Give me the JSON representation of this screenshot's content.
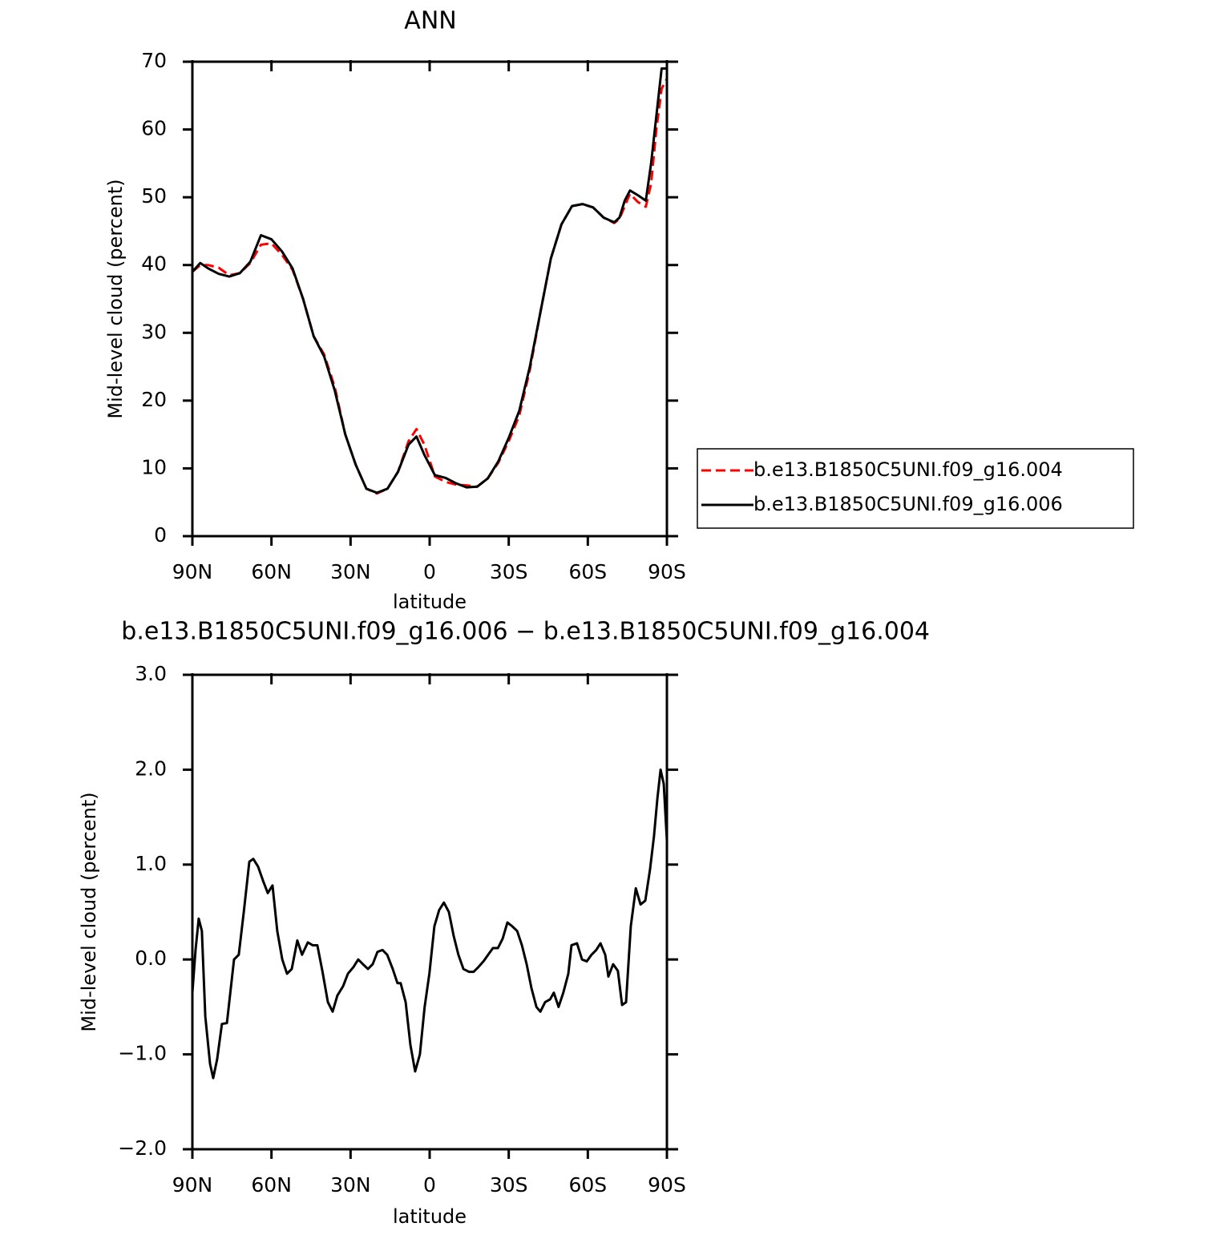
{
  "chart_data": [
    {
      "type": "line",
      "title": "ANN",
      "xlabel": "latitude",
      "ylabel": "Mid-level cloud (percent)",
      "x": [
        90,
        87,
        84,
        80,
        76,
        72,
        68,
        64,
        60,
        56,
        52,
        48,
        44,
        40,
        36,
        32,
        28,
        24,
        20,
        16,
        12,
        8,
        5,
        2,
        -2,
        -6,
        -10,
        -14,
        -18,
        -22,
        -26,
        -30,
        -34,
        -38,
        -42,
        -46,
        -50,
        -54,
        -58,
        -62,
        -66,
        -70,
        -72,
        -74,
        -76,
        -79,
        -82,
        -84,
        -86,
        -88,
        -90
      ],
      "series": [
        {
          "name": "b.e13.B1850C5UNI.f09_g16.004",
          "color": "#ff0000",
          "dash": "dashed",
          "values": [
            39,
            40,
            40,
            39.6,
            38.5,
            38.8,
            40.3,
            43,
            43.2,
            41.5,
            39.3,
            35,
            29.5,
            26.8,
            22,
            15,
            10.5,
            7,
            6.3,
            7,
            9.5,
            14,
            15.8,
            13.5,
            8.8,
            8,
            7.6,
            7.5,
            7.3,
            8.5,
            10.8,
            14,
            17.8,
            24.5,
            33,
            41,
            46,
            48.7,
            49,
            48.5,
            47,
            46.2,
            46.8,
            48.7,
            50.5,
            49.3,
            48.6,
            52,
            60,
            66,
            67.5
          ]
        },
        {
          "name": "b.e13.B1850C5UNI.f09_g16.006",
          "color": "#000000",
          "dash": "solid",
          "values": [
            39,
            40.3,
            39.5,
            38.7,
            38.3,
            38.8,
            40.5,
            44.4,
            43.8,
            42,
            39.5,
            35,
            29.5,
            26.5,
            21.5,
            15,
            10.5,
            7,
            6.4,
            7,
            9.5,
            13.5,
            14.7,
            12,
            9,
            8.6,
            7.8,
            7.2,
            7.3,
            8.5,
            11,
            14.5,
            18.5,
            25,
            33,
            41,
            46,
            48.7,
            49,
            48.5,
            47,
            46.3,
            47,
            49.5,
            51,
            50.3,
            49.5,
            55,
            62,
            69,
            69
          ]
        }
      ],
      "xlim": [
        90,
        -90
      ],
      "xticks": [
        {
          "value": 90,
          "label": "90N"
        },
        {
          "value": 60,
          "label": "60N"
        },
        {
          "value": 30,
          "label": "30N"
        },
        0,
        {
          "value": -30,
          "label": "30S"
        },
        {
          "value": -60,
          "label": "60S"
        },
        {
          "value": -90,
          "label": "90S"
        }
      ],
      "ylim": [
        0,
        70
      ],
      "yticks": [
        0,
        10,
        20,
        30,
        40,
        50,
        60,
        70
      ],
      "legend": "right"
    },
    {
      "type": "line",
      "title": "b.e13.B1850C5UNI.f09_g16.006 − b.e13.B1850C5UNI.f09_g16.004",
      "xlabel": "latitude",
      "ylabel": "Mid-level cloud (percent)",
      "x": [
        90,
        88.8,
        87.6,
        86.4,
        85.1,
        83.3,
        82.1,
        80.6,
        78.8,
        76.9,
        74.2,
        72.4,
        70.5,
        68.4,
        66.9,
        65.1,
        63.2,
        61.4,
        59.6,
        57.8,
        55.9,
        54.1,
        52.3,
        50.2,
        48.4,
        46.2,
        44.4,
        42.6,
        40.7,
        38.6,
        36.8,
        35,
        32.8,
        31,
        28.9,
        27.1,
        25.3,
        23.4,
        21.6,
        19.8,
        17.9,
        16.1,
        14,
        12.2,
        11,
        9.1,
        7.3,
        5.5,
        3.7,
        1.9,
        0.1,
        -1.8,
        -3.6,
        -5.4,
        -7.3,
        -9.1,
        -10.9,
        -12.8,
        -14.9,
        -16.7,
        -18.5,
        -20.4,
        -22.2,
        -24,
        -25.9,
        -27.7,
        -29.5,
        -31.3,
        -33.2,
        -35,
        -36.8,
        -38.6,
        -40.5,
        -42,
        -43.8,
        -45.7,
        -47.1,
        -48.9,
        -50.7,
        -52.6,
        -53.8,
        -55.9,
        -57.8,
        -59.6,
        -61.4,
        -63.2,
        -64.8,
        -66.6,
        -67.8,
        -69.6,
        -71.4,
        -73,
        -74.5,
        -76.3,
        -78.2,
        -80,
        -81.8,
        -83.6,
        -85.1,
        -86.4,
        -87.6,
        -88.8,
        -90
      ],
      "values": [
        -0.35,
        0.1,
        0.43,
        0.3,
        -0.6,
        -1.1,
        -1.25,
        -1.05,
        -0.68,
        -0.67,
        0,
        0.05,
        0.5,
        1.03,
        1.06,
        0.98,
        0.83,
        0.7,
        0.78,
        0.3,
        0,
        -0.15,
        -0.1,
        0.2,
        0.05,
        0.18,
        0.15,
        0.15,
        -0.12,
        -0.45,
        -0.55,
        -0.38,
        -0.28,
        -0.15,
        -0.08,
        0,
        -0.05,
        -0.1,
        -0.05,
        0.08,
        0.1,
        0.05,
        -0.1,
        -0.25,
        -0.25,
        -0.45,
        -0.9,
        -1.18,
        -1,
        -0.5,
        -0.15,
        0.35,
        0.52,
        0.6,
        0.5,
        0.25,
        0.05,
        -0.1,
        -0.13,
        -0.13,
        -0.08,
        -0.02,
        0.05,
        0.12,
        0.12,
        0.22,
        0.39,
        0.35,
        0.3,
        0.15,
        -0.05,
        -0.3,
        -0.5,
        -0.55,
        -0.45,
        -0.42,
        -0.35,
        -0.5,
        -0.35,
        -0.15,
        0.15,
        0.17,
        0,
        -0.02,
        0.05,
        0.1,
        0.17,
        0.05,
        -0.18,
        -0.05,
        -0.12,
        -0.48,
        -0.45,
        0.35,
        0.75,
        0.58,
        0.62,
        0.95,
        1.3,
        1.7,
        2,
        1.85,
        1.25
      ],
      "color": "#000000",
      "xlim": [
        90,
        -90
      ],
      "xticks": [
        {
          "value": 90,
          "label": "90N"
        },
        {
          "value": 60,
          "label": "60N"
        },
        {
          "value": 30,
          "label": "30N"
        },
        0,
        {
          "value": -30,
          "label": "30S"
        },
        {
          "value": -60,
          "label": "60S"
        },
        {
          "value": -90,
          "label": "90S"
        }
      ],
      "ylim": [
        -2,
        3
      ],
      "yticks": [
        {
          "value": -2,
          "label": "−2.0"
        },
        {
          "value": -1,
          "label": "−1.0"
        },
        {
          "value": 0,
          "label": "0.0"
        },
        {
          "value": 1,
          "label": "1.0"
        },
        {
          "value": 2,
          "label": "2.0"
        },
        {
          "value": 3,
          "label": "3.0"
        }
      ]
    }
  ]
}
